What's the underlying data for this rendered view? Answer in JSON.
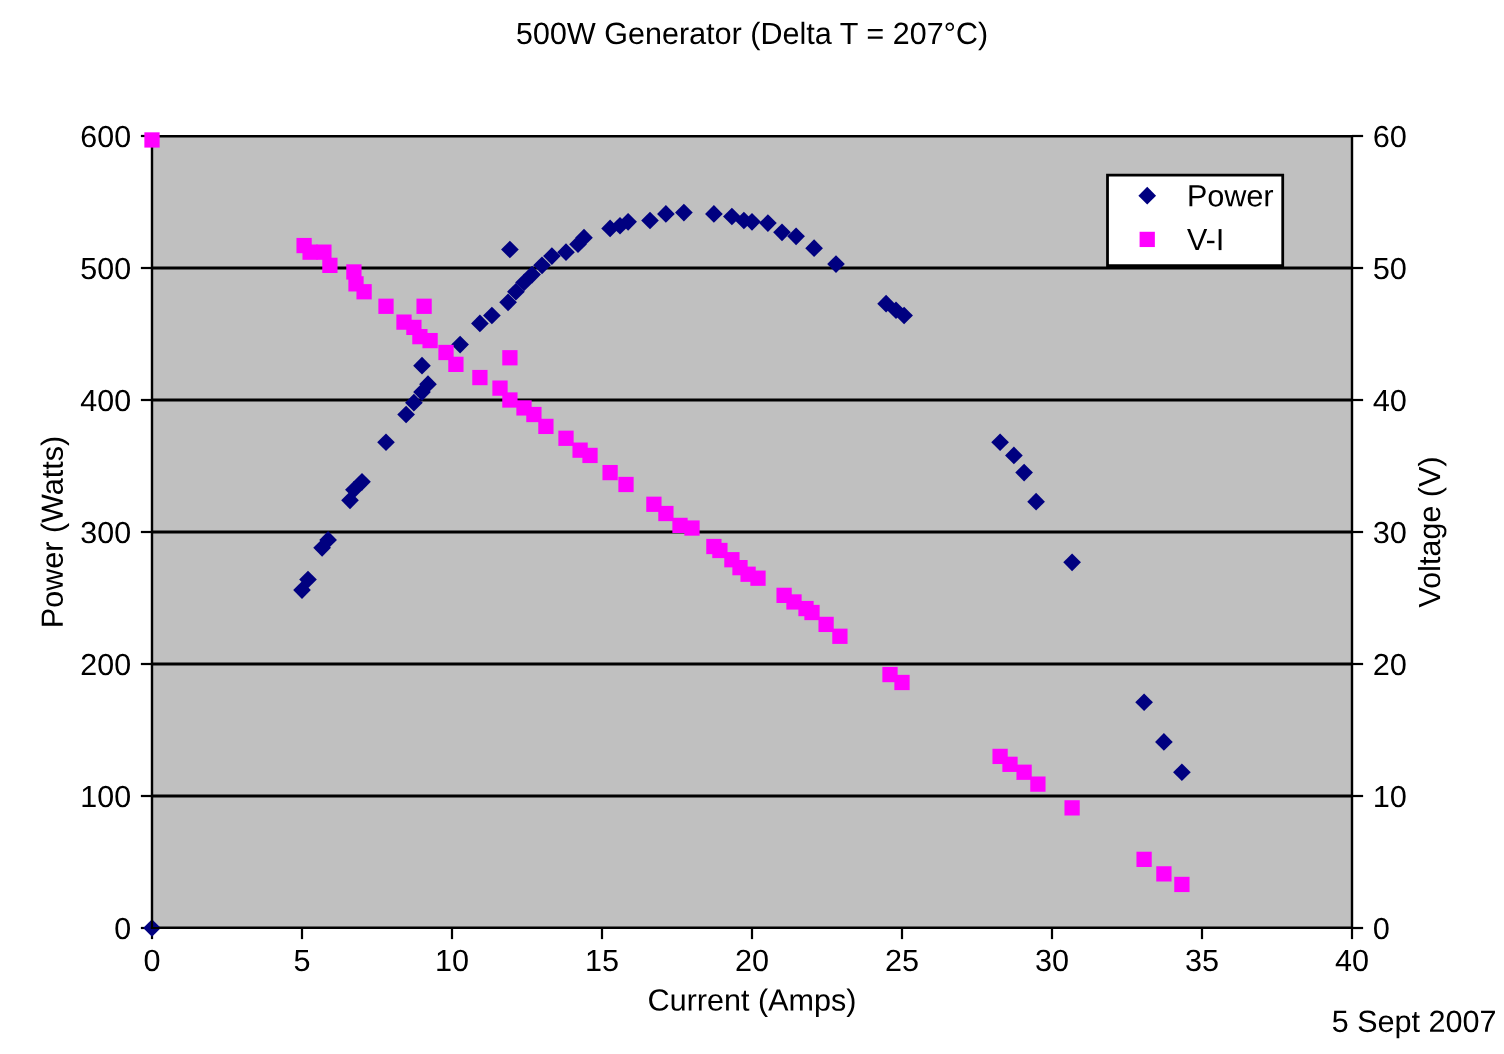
{
  "chart_data": {
    "type": "scatter",
    "title": "500W Generator (Delta T = 207°C)",
    "xlabel": "Current (Amps)",
    "ylabel": "Power (Watts)",
    "y2label": "Voltage (V)",
    "annotations": [
      "5 Sept 2007"
    ],
    "xlim": [
      0,
      40
    ],
    "xticks": [
      0,
      5,
      10,
      15,
      20,
      25,
      30,
      35,
      40
    ],
    "ylim": [
      0,
      600
    ],
    "yticks": [
      0,
      100,
      200,
      300,
      400,
      500,
      600
    ],
    "y2lim": [
      0,
      60
    ],
    "y2ticks": [
      0,
      10,
      20,
      30,
      40,
      50,
      60
    ],
    "grid": "y",
    "legend": "top right",
    "series": [
      {
        "name": "Power",
        "color": "#000080",
        "marker": "diamond",
        "x": [
          0,
          5.0,
          5.2,
          5.67,
          5.87,
          6.6,
          6.73,
          7.0,
          7.8,
          8.47,
          8.73,
          9.0,
          9.2,
          9.0,
          10.27,
          10.93,
          11.33,
          11.87,
          11.93,
          12.13,
          12.4,
          12.67,
          13.0,
          13.33,
          13.8,
          14.2,
          14.4,
          15.27,
          15.6,
          15.87,
          16.6,
          17.13,
          17.73,
          18.73,
          19.33,
          19.73,
          20.0,
          20.53,
          21.0,
          21.47,
          22.07,
          22.8,
          24.47,
          24.8,
          25.07,
          28.27,
          28.73,
          29.07,
          29.47,
          30.67,
          33.07,
          33.73,
          34.33
        ],
        "values": [
          0,
          256,
          264,
          288,
          294,
          324,
          332,
          338,
          368,
          389,
          398,
          406,
          412,
          426,
          442,
          458,
          464,
          474,
          514,
          482,
          489,
          495,
          502,
          509,
          512,
          518,
          523,
          530,
          532,
          535,
          536,
          541,
          542,
          541,
          539,
          536,
          535,
          534,
          527,
          524,
          515,
          503,
          473,
          468,
          464,
          368,
          358,
          345,
          323,
          277,
          171,
          141,
          118
        ]
      },
      {
        "name": "V-I",
        "color": "#ff00ff",
        "marker": "square",
        "axis": "y2",
        "x": [
          0,
          5.07,
          5.27,
          5.73,
          5.93,
          6.73,
          6.8,
          7.07,
          7.8,
          9.07,
          8.4,
          8.73,
          8.93,
          9.27,
          9.8,
          10.13,
          11.93,
          10.93,
          11.6,
          11.93,
          12.4,
          12.73,
          13.13,
          13.8,
          14.27,
          14.6,
          15.27,
          15.8,
          16.73,
          17.13,
          17.6,
          18.0,
          18.73,
          18.93,
          19.33,
          19.6,
          19.87,
          20.2,
          21.07,
          21.4,
          21.8,
          22.0,
          22.47,
          22.93,
          24.6,
          25.0,
          28.27,
          28.6,
          29.07,
          29.53,
          30.67,
          33.07,
          33.73,
          34.33
        ],
        "values": [
          59.7,
          51.7,
          51.2,
          51.2,
          50.2,
          49.7,
          48.8,
          48.2,
          47.1,
          47.1,
          45.9,
          45.5,
          44.8,
          44.5,
          43.6,
          42.7,
          43.2,
          41.7,
          40.9,
          40.0,
          39.4,
          38.9,
          38.0,
          37.1,
          36.2,
          35.8,
          34.5,
          33.6,
          32.1,
          31.4,
          30.5,
          30.3,
          28.9,
          28.6,
          27.9,
          27.3,
          26.8,
          26.5,
          25.2,
          24.7,
          24.2,
          23.9,
          23.0,
          22.1,
          19.2,
          18.6,
          13.0,
          12.4,
          11.8,
          10.9,
          9.1,
          5.2,
          4.1,
          3.3
        ]
      }
    ]
  }
}
